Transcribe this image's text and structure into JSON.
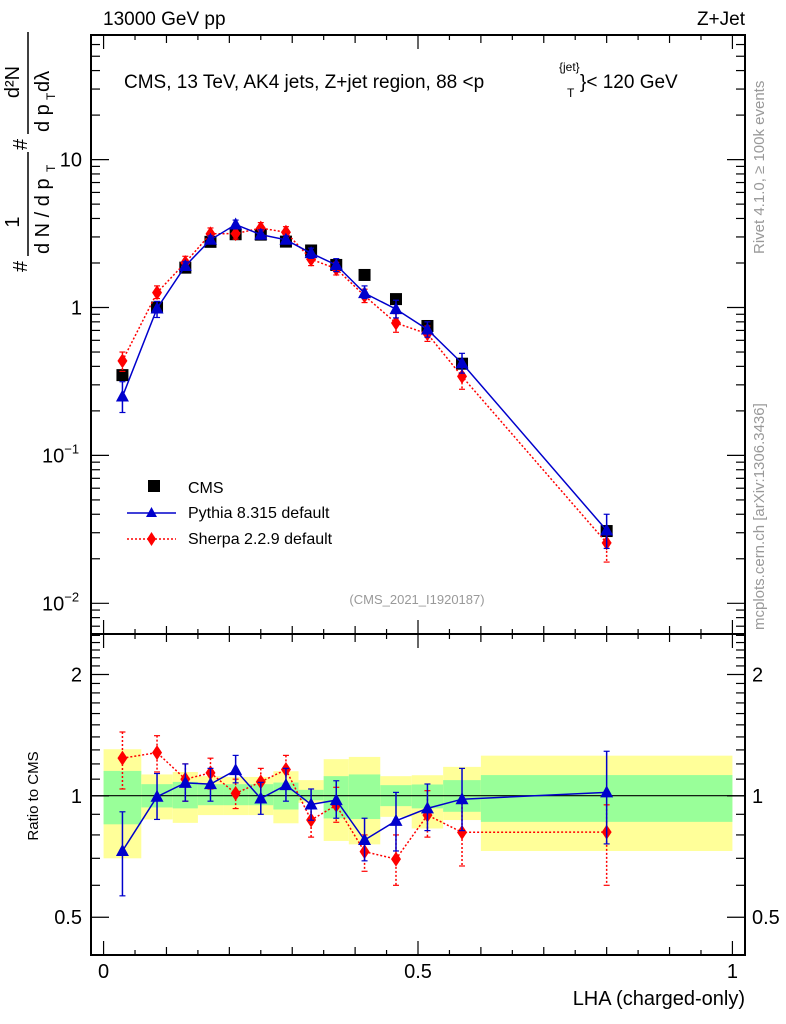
{
  "header": {
    "energy_label": "13000 GeV pp",
    "process_label": "Z+Jet"
  },
  "side_labels": {
    "rivet": "Rivet 4.1.0, ≥ 100k events",
    "mcplots": "mcplots.cern.ch [arXiv:1306.3436]"
  },
  "chart_data": [
    {
      "panel": "main",
      "type": "scatter",
      "title": "CMS, 13 TeV, AK4 jets, Z+jet region, 88 <p_T^{jet}< 120 GeV",
      "title_parts": {
        "pre": "CMS, 13 TeV, AK4 jets, Z+jet region, 88 <p",
        "sup": "{jet}",
        "sub": "T",
        "post": "}< 120 GeV"
      },
      "analysis_tag": "(CMS_2021_I1920187)",
      "xlabel": "LHA (charged-only)",
      "ylabel": "1/(dN/dp_T) · d²N/(dp_T dλ)",
      "ylabel_parts": {
        "hash1": "#",
        "num1": "1",
        "den1": "d N / d p",
        "den1_sub": "T",
        "hash2": "#",
        "num2": "d²N",
        "den2": "d p",
        "den2_sub": "T",
        "den2_post": " dλ"
      },
      "xlim": [
        -0.02,
        1.02
      ],
      "ylim": [
        0.0062,
        69.6
      ],
      "yscale": "log",
      "yticks": [
        {
          "value": 0.01,
          "base": "10",
          "exp": "−2"
        },
        {
          "value": 0.1,
          "base": "10",
          "exp": "−1"
        },
        {
          "value": 1,
          "label": "1"
        },
        {
          "value": 10,
          "label": "10"
        }
      ],
      "legend_position": "lower-left",
      "series": [
        {
          "name": "CMS",
          "marker": "square",
          "color": "#000000",
          "x": [
            0.03,
            0.085,
            0.13,
            0.17,
            0.21,
            0.25,
            0.29,
            0.33,
            0.37,
            0.415,
            0.465,
            0.515,
            0.57,
            0.8
          ],
          "y": [
            0.349,
            1.0,
            1.86,
            2.78,
            3.13,
            3.11,
            2.79,
            2.43,
            1.94,
            1.66,
            1.14,
            0.75,
            0.417,
            0.0308
          ],
          "yerr_low": [
            0.33,
            0.97,
            1.81,
            2.72,
            3.07,
            3.05,
            2.74,
            2.38,
            1.89,
            1.62,
            1.11,
            0.73,
            0.4,
            0.0295
          ],
          "yerr_high": [
            0.37,
            1.03,
            1.91,
            2.84,
            3.19,
            3.17,
            2.84,
            2.48,
            1.99,
            1.7,
            1.17,
            0.77,
            0.43,
            0.0321
          ]
        },
        {
          "name": "Pythia 8.315 default",
          "marker": "triangle",
          "line": "solid",
          "color": "#0000cc",
          "x": [
            0.03,
            0.085,
            0.13,
            0.17,
            0.21,
            0.25,
            0.29,
            0.33,
            0.37,
            0.415,
            0.465,
            0.515,
            0.57,
            0.8
          ],
          "y": [
            0.25,
            0.985,
            1.91,
            2.87,
            3.64,
            3.11,
            2.87,
            2.33,
            1.94,
            1.25,
            0.975,
            0.71,
            0.42,
            0.0311
          ],
          "yerr_low": [
            0.195,
            0.856,
            1.8,
            2.7,
            3.4,
            2.9,
            2.72,
            2.15,
            1.75,
            1.15,
            0.85,
            0.63,
            0.36,
            0.0235
          ],
          "yerr_high": [
            0.315,
            1.1,
            2.04,
            3.05,
            3.9,
            3.35,
            3.05,
            2.52,
            2.14,
            1.4,
            1.12,
            0.8,
            0.49,
            0.04
          ]
        },
        {
          "name": "Sherpa 2.2.9 default",
          "marker": "diamond",
          "line": "dotted",
          "color": "#ff0000",
          "x": [
            0.03,
            0.085,
            0.13,
            0.17,
            0.21,
            0.25,
            0.29,
            0.33,
            0.37,
            0.415,
            0.465,
            0.515,
            0.57,
            0.8
          ],
          "y": [
            0.436,
            1.26,
            2.01,
            3.15,
            3.16,
            3.44,
            3.23,
            2.12,
            1.83,
            1.2,
            0.785,
            0.664,
            0.342,
            0.0256
          ],
          "yerr_low": [
            0.37,
            1.15,
            1.83,
            2.9,
            2.9,
            3.15,
            2.96,
            1.92,
            1.66,
            1.08,
            0.68,
            0.59,
            0.28,
            0.019
          ],
          "yerr_high": [
            0.5,
            1.4,
            2.22,
            3.45,
            3.45,
            3.75,
            3.52,
            2.34,
            2.02,
            1.33,
            0.91,
            0.75,
            0.4,
            0.029
          ]
        }
      ]
    },
    {
      "panel": "ratio",
      "type": "scatter",
      "ylabel": "Ratio to CMS",
      "xlabel": "LHA (charged-only)",
      "xlim": [
        -0.02,
        1.02
      ],
      "ylim": [
        0.403,
        2.52
      ],
      "yscale": "log",
      "yticks": [
        {
          "value": 0.5,
          "label": "0.5"
        },
        {
          "value": 1,
          "label": "1"
        },
        {
          "value": 2,
          "label": "2"
        }
      ],
      "xticks": [
        {
          "value": 0,
          "label": "0"
        },
        {
          "value": 0.5,
          "label": "0.5"
        },
        {
          "value": 1,
          "label": "1"
        }
      ],
      "reference_line": 1,
      "bins": [
        [
          0.0,
          0.06
        ],
        [
          0.06,
          0.11
        ],
        [
          0.11,
          0.15
        ],
        [
          0.15,
          0.19
        ],
        [
          0.19,
          0.23
        ],
        [
          0.23,
          0.27
        ],
        [
          0.27,
          0.31
        ],
        [
          0.31,
          0.35
        ],
        [
          0.35,
          0.39
        ],
        [
          0.39,
          0.44
        ],
        [
          0.44,
          0.49
        ],
        [
          0.49,
          0.54
        ],
        [
          0.54,
          0.6
        ],
        [
          0.6,
          1.0
        ]
      ],
      "bands": {
        "stat_color": "#99ff99",
        "total_color": "#ffff99",
        "inner_low": [
          0.85,
          0.936,
          0.931,
          0.948,
          0.948,
          0.948,
          0.925,
          0.975,
          0.879,
          0.876,
          0.943,
          0.931,
          0.913,
          0.862
        ],
        "inner_high": [
          1.153,
          1.069,
          1.083,
          1.069,
          1.069,
          1.069,
          1.079,
          1.035,
          1.119,
          1.13,
          1.063,
          1.067,
          1.094,
          1.126
        ],
        "outer_low": [
          0.7,
          0.874,
          0.857,
          0.896,
          0.896,
          0.896,
          0.855,
          0.961,
          0.773,
          0.758,
          0.887,
          0.83,
          0.871,
          0.73
        ],
        "outer_high": [
          1.305,
          1.13,
          1.146,
          1.119,
          1.114,
          1.114,
          1.151,
          1.094,
          1.233,
          1.249,
          1.119,
          1.125,
          1.18,
          1.258
        ]
      },
      "series": [
        {
          "name": "Pythia 8.315 default",
          "marker": "triangle",
          "line": "solid",
          "color": "#0000cc",
          "x": [
            0.03,
            0.085,
            0.13,
            0.17,
            0.21,
            0.25,
            0.29,
            0.33,
            0.37,
            0.415,
            0.465,
            0.515,
            0.57,
            0.8
          ],
          "y": [
            0.73,
            0.995,
            1.077,
            1.069,
            1.158,
            0.985,
            1.063,
            0.952,
            0.976,
            0.777,
            0.867,
            0.931,
            0.981,
            1.02
          ],
          "yerr_low": [
            0.565,
            0.874,
            0.97,
            0.97,
            1.077,
            0.9,
            0.97,
            0.87,
            0.88,
            0.69,
            0.73,
            0.82,
            0.82,
            0.76
          ],
          "yerr_high": [
            0.913,
            1.136,
            1.2,
            1.17,
            1.26,
            1.08,
            1.17,
            1.04,
            1.09,
            0.88,
            1.02,
            1.07,
            1.17,
            1.29
          ]
        },
        {
          "name": "Sherpa 2.2.9 default",
          "marker": "diamond",
          "line": "dotted",
          "color": "#ff0000",
          "x": [
            0.03,
            0.085,
            0.13,
            0.17,
            0.21,
            0.25,
            0.29,
            0.33,
            0.37,
            0.415,
            0.465,
            0.515,
            0.57,
            0.8
          ],
          "y": [
            1.24,
            1.28,
            1.1,
            1.14,
            1.014,
            1.083,
            1.162,
            0.871,
            0.948,
            0.727,
            0.697,
            0.896,
            0.812,
            0.813
          ],
          "yerr_low": [
            1.04,
            1.146,
            0.97,
            1.04,
            0.93,
            0.99,
            1.06,
            0.79,
            0.86,
            0.65,
            0.6,
            0.79,
            0.67,
            0.6
          ],
          "yerr_high": [
            1.44,
            1.41,
            1.2,
            1.24,
            1.1,
            1.17,
            1.26,
            0.96,
            1.05,
            0.8,
            0.8,
            1.03,
            0.96,
            0.95
          ]
        }
      ]
    }
  ]
}
